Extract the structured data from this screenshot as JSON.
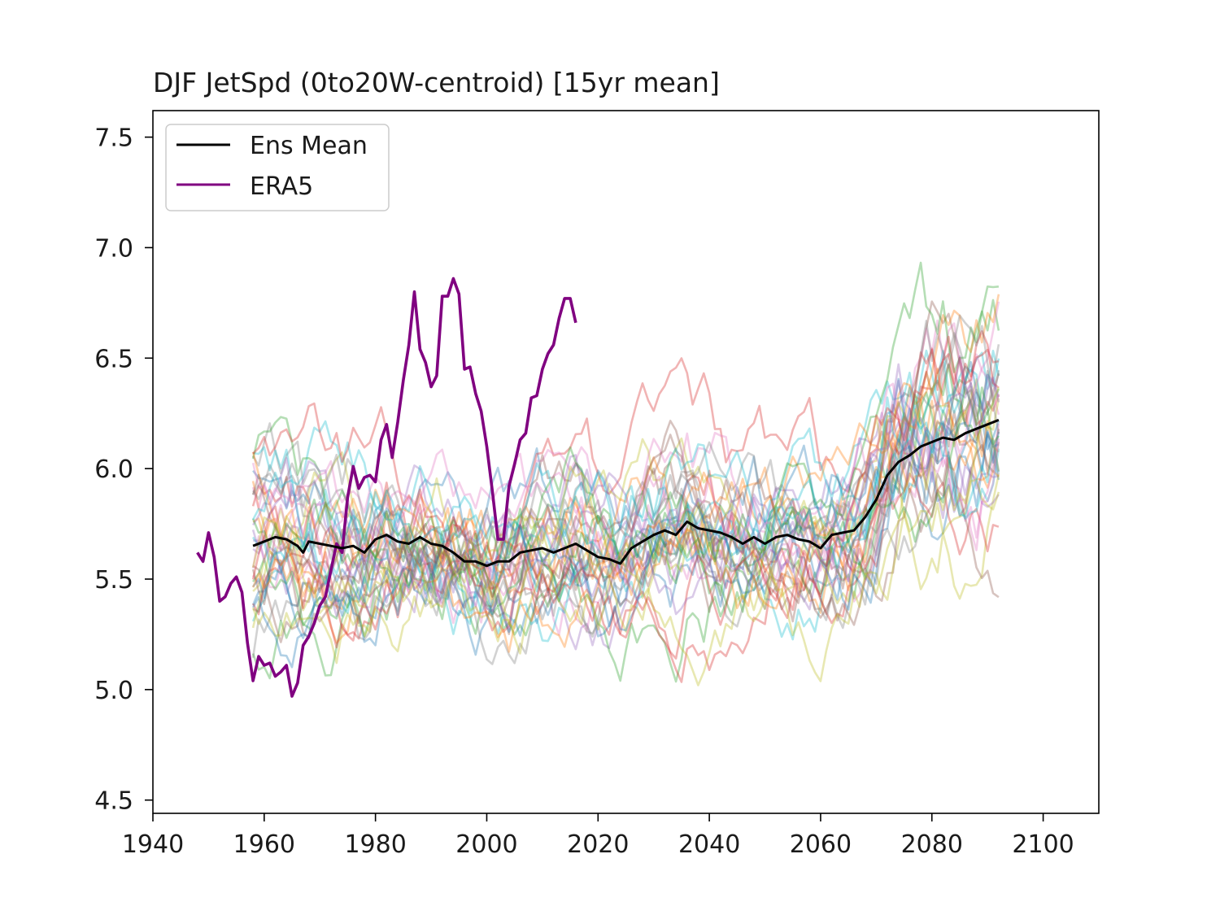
{
  "chart_data": {
    "type": "line",
    "title": "DJF JetSpd (0to20W-centroid) [15yr mean]",
    "xlabel": "",
    "ylabel": "",
    "xlim": [
      1940,
      2110
    ],
    "ylim": [
      4.44,
      7.62
    ],
    "xticks": [
      1940,
      1960,
      1980,
      2000,
      2020,
      2040,
      2060,
      2080,
      2100
    ],
    "xtick_labels": [
      "1940",
      "1960",
      "1980",
      "2000",
      "2020",
      "2040",
      "2060",
      "2080",
      "2100"
    ],
    "yticks": [
      4.5,
      5.0,
      5.5,
      6.0,
      6.5,
      7.0,
      7.5
    ],
    "ytick_labels": [
      "4.5",
      "5.0",
      "5.5",
      "6.0",
      "6.5",
      "7.0",
      "7.5"
    ],
    "legend": {
      "position": "top-left",
      "entries": [
        {
          "label": "Ens Mean",
          "color": "#000000"
        },
        {
          "label": "ERA5",
          "color": "#800080"
        }
      ]
    },
    "ensemble": {
      "name": "ensemble members",
      "count": 40,
      "x_start": 1958,
      "x_end": 2092,
      "opacity": 0.35,
      "palette": [
        "#1f77b4",
        "#ff7f0e",
        "#2ca02c",
        "#d62728",
        "#9467bd",
        "#8c564b",
        "#e377c2",
        "#7f7f7f",
        "#bcbd22",
        "#17becf"
      ]
    },
    "series": [
      {
        "name": "Ens Mean",
        "color": "#000000",
        "x": [
          1958,
          1960,
          1962,
          1964,
          1966,
          1967,
          1968,
          1970,
          1972,
          1974,
          1976,
          1978,
          1980,
          1982,
          1984,
          1986,
          1988,
          1990,
          1992,
          1994,
          1996,
          1998,
          2000,
          2002,
          2004,
          2006,
          2008,
          2010,
          2012,
          2014,
          2016,
          2018,
          2020,
          2022,
          2024,
          2026,
          2028,
          2030,
          2032,
          2034,
          2036,
          2038,
          2040,
          2042,
          2044,
          2046,
          2048,
          2050,
          2052,
          2054,
          2056,
          2058,
          2060,
          2062,
          2064,
          2066,
          2068,
          2070,
          2072,
          2074,
          2076,
          2078,
          2080,
          2082,
          2084,
          2086,
          2088,
          2090,
          2092
        ],
        "values": [
          5.65,
          5.67,
          5.69,
          5.68,
          5.65,
          5.62,
          5.67,
          5.66,
          5.65,
          5.64,
          5.65,
          5.62,
          5.68,
          5.7,
          5.67,
          5.66,
          5.69,
          5.66,
          5.65,
          5.62,
          5.58,
          5.58,
          5.56,
          5.58,
          5.58,
          5.62,
          5.63,
          5.64,
          5.62,
          5.64,
          5.66,
          5.63,
          5.6,
          5.59,
          5.57,
          5.64,
          5.67,
          5.7,
          5.72,
          5.7,
          5.76,
          5.73,
          5.72,
          5.71,
          5.69,
          5.66,
          5.69,
          5.66,
          5.69,
          5.7,
          5.68,
          5.67,
          5.64,
          5.7,
          5.71,
          5.72,
          5.78,
          5.86,
          5.97,
          6.03,
          6.06,
          6.1,
          6.12,
          6.14,
          6.13,
          6.16,
          6.18,
          6.2,
          6.22
        ]
      },
      {
        "name": "ERA5",
        "color": "#800080",
        "x": [
          1948,
          1949,
          1950,
          1951,
          1952,
          1953,
          1954,
          1955,
          1956,
          1957,
          1958,
          1959,
          1960,
          1961,
          1962,
          1963,
          1964,
          1965,
          1966,
          1967,
          1968,
          1969,
          1970,
          1971,
          1972,
          1973,
          1974,
          1975,
          1976,
          1977,
          1978,
          1979,
          1980,
          1981,
          1982,
          1983,
          1984,
          1985,
          1986,
          1987,
          1988,
          1989,
          1990,
          1991,
          1992,
          1993,
          1994,
          1995,
          1996,
          1997,
          1998,
          1999,
          2000,
          2001,
          2002,
          2003,
          2004,
          2005,
          2006,
          2007,
          2008,
          2009,
          2010,
          2011,
          2012,
          2013,
          2014,
          2015,
          2016
        ],
        "values": [
          5.62,
          5.58,
          5.71,
          5.6,
          5.4,
          5.42,
          5.48,
          5.51,
          5.44,
          5.21,
          5.04,
          5.15,
          5.11,
          5.12,
          5.06,
          5.08,
          5.11,
          4.97,
          5.03,
          5.2,
          5.24,
          5.3,
          5.38,
          5.42,
          5.54,
          5.66,
          5.62,
          5.87,
          6.01,
          5.91,
          5.96,
          5.97,
          5.94,
          6.13,
          6.2,
          6.05,
          6.21,
          6.4,
          6.56,
          6.8,
          6.54,
          6.48,
          6.37,
          6.42,
          6.78,
          6.78,
          6.86,
          6.79,
          6.45,
          6.46,
          6.34,
          6.26,
          6.1,
          5.9,
          5.68,
          5.68,
          5.92,
          6.02,
          6.13,
          6.16,
          6.32,
          6.33,
          6.45,
          6.52,
          6.56,
          6.68,
          6.77,
          6.77,
          6.66
        ]
      }
    ]
  }
}
